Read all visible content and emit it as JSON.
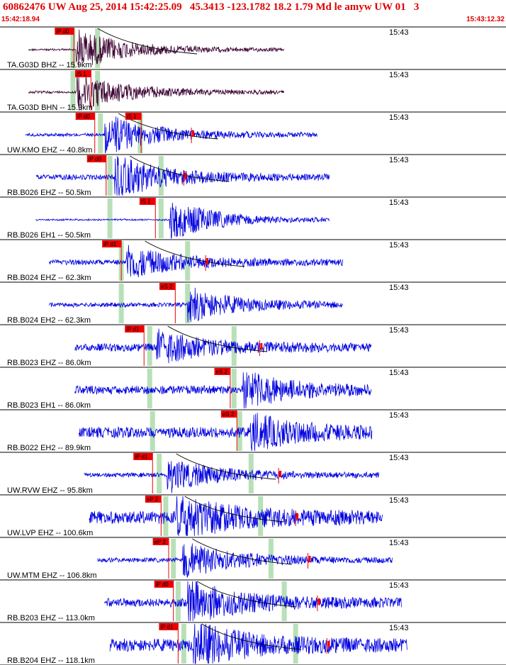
{
  "header": {
    "title": "60862476 UW Aug 25, 2014 15:42:25.09   45.3413 -123.1782 18.2 1.79 Md le amyw UW 01   3",
    "start_time": "15:42:18.94",
    "end_time": "15:43:12.32"
  },
  "colors": {
    "header_red": "#e00000",
    "trace_dark": "#3a0030",
    "trace_blue": "#0000e0",
    "pick_red": "#ee0000",
    "predict_green": "#b8e0b8",
    "divider": "#000000"
  },
  "chart_data": {
    "type": "line",
    "minute_label": "15:43",
    "panels": [
      {
        "station": "TA.G03D BHZ -- 15.9km",
        "color": "dark",
        "picks": [
          {
            "label": "iP d0",
            "t": 7.8
          }
        ],
        "green": [
          7.7,
          10.3
        ],
        "sig": [
          3.0,
          30.0
        ],
        "onset": 8.0,
        "amp": 0.95,
        "noise": 0.04,
        "amp_pick": null,
        "moveout": true
      },
      {
        "station": "TA.G03D BHN -- 15.9km",
        "color": "dark",
        "picks": [
          {
            "label": "iS 1",
            "t": 9.6
          }
        ],
        "green": [
          7.7,
          10.3
        ],
        "sig": [
          3.0,
          30.0
        ],
        "onset": 8.1,
        "amp": 0.9,
        "noise": 0.05,
        "amp_pick": null,
        "moveout": false
      },
      {
        "station": "UW.KMO EHZ -- 40.8km",
        "color": "blue",
        "picks": [
          {
            "label": "iP d0",
            "t": 10.0
          },
          {
            "label": "iS 1",
            "t": 14.9
          }
        ],
        "green": [
          10.6,
          14.8
        ],
        "sig": [
          2.7,
          33.5
        ],
        "onset": 11.0,
        "amp": 0.95,
        "noise": 0.07,
        "amp_pick": 20.2,
        "moveout": true
      },
      {
        "station": "RB.B026 EHZ -- 50.5km",
        "color": "blue",
        "picks": [
          {
            "label": "iP d0",
            "t": 11.2
          }
        ],
        "green": [
          11.6,
          17.0
        ],
        "sig": [
          3.8,
          34.8
        ],
        "onset": 12.1,
        "amp": 0.95,
        "noise": 0.12,
        "amp_pick": 19.4,
        "moveout": true
      },
      {
        "station": "RB.B026 EH1 -- 50.5km",
        "color": "blue",
        "picks": [
          {
            "label": "iS 1",
            "t": 16.4
          }
        ],
        "green": [
          11.6,
          17.0
        ],
        "sig": [
          3.8,
          34.8
        ],
        "onset": 17.9,
        "amp": 0.95,
        "noise": 0.03,
        "amp_pick": null,
        "moveout": false
      },
      {
        "station": "RB.B024 EHZ -- 62.3km",
        "color": "blue",
        "picks": [
          {
            "label": "iP d1",
            "t": 12.8
          }
        ],
        "green": [
          12.8,
          19.8
        ],
        "sig": [
          5.2,
          36.2
        ],
        "onset": 13.3,
        "amp": 0.75,
        "noise": 0.12,
        "amp_pick": 21.7,
        "moveout": true
      },
      {
        "station": "RB.B024 EH2 -- 62.3km",
        "color": "blue",
        "picks": [
          {
            "label": "eS 2",
            "t": 18.5
          }
        ],
        "green": [
          12.8,
          19.8
        ],
        "sig": [
          5.2,
          36.2
        ],
        "onset": 19.8,
        "amp": 0.75,
        "noise": 0.1,
        "amp_pick": null,
        "moveout": false
      },
      {
        "station": "RB.B023 EHZ -- 86.0km",
        "color": "blue",
        "picks": [
          {
            "label": "iP d1",
            "t": 15.2
          }
        ],
        "green": [
          15.8,
          24.7
        ],
        "sig": [
          7.9,
          39.2
        ],
        "onset": 16.5,
        "amp": 0.7,
        "noise": 0.18,
        "amp_pick": 27.4,
        "moveout": true
      },
      {
        "station": "RB.B023 EH1 -- 86.0km",
        "color": "blue",
        "picks": [
          {
            "label": "eS 2",
            "t": 24.3
          }
        ],
        "green": [
          15.8,
          24.7
        ],
        "sig": [
          7.9,
          39.2
        ],
        "onset": 25.6,
        "amp": 0.75,
        "noise": 0.2,
        "amp_pick": null,
        "moveout": false
      },
      {
        "station": "RB.B022 EH2 -- 89.9km",
        "color": "blue",
        "picks": [
          {
            "label": "eS 2",
            "t": 25.0
          }
        ],
        "green": [
          16.1,
          25.3
        ],
        "sig": [
          8.3,
          39.3
        ],
        "onset": 26.4,
        "amp": 0.75,
        "noise": 0.25,
        "amp_pick": null,
        "moveout": false
      },
      {
        "station": "UW.RVW EHZ -- 95.8km",
        "color": "blue",
        "picks": [
          {
            "label": "iP d1",
            "t": 16.1
          }
        ],
        "green": [
          16.8,
          26.5
        ],
        "sig": [
          8.9,
          40.0
        ],
        "onset": 17.6,
        "amp": 0.75,
        "noise": 0.1,
        "amp_pick": 29.4,
        "moveout": true
      },
      {
        "station": "UW.LVP EHZ -- 100.6km",
        "color": "blue",
        "picks": [
          {
            "label": "eP 2",
            "t": 17.0
          }
        ],
        "green": [
          17.5,
          27.5
        ],
        "sig": [
          9.4,
          40.4
        ],
        "onset": 18.6,
        "amp": 0.95,
        "noise": 0.3,
        "amp_pick": 31.2,
        "moveout": true
      },
      {
        "station": "UW.MTM EHZ -- 106.8km",
        "color": "blue",
        "picks": [
          {
            "label": "eP 2",
            "t": 17.8
          }
        ],
        "green": [
          18.3,
          28.6
        ],
        "sig": [
          10.3,
          41.4
        ],
        "onset": 19.3,
        "amp": 0.85,
        "noise": 0.1,
        "amp_pick": 32.5,
        "moveout": true
      },
      {
        "station": "RB.B203 EHZ -- 113.0km",
        "color": "blue",
        "picks": [
          {
            "label": "iP d0",
            "t": 18.3
          }
        ],
        "green": [
          18.8,
          30.0
        ],
        "sig": [
          11.0,
          42.4
        ],
        "onset": 19.8,
        "amp": 0.95,
        "noise": 0.2,
        "amp_pick": 33.5,
        "moveout": true
      },
      {
        "station": "RB.B204 EHZ -- 118.1km",
        "color": "blue",
        "picks": [
          {
            "label": "iP d1",
            "t": 18.8
          }
        ],
        "green": [
          19.4,
          31.2
        ],
        "sig": [
          11.6,
          43.0
        ],
        "onset": 20.4,
        "amp": 0.95,
        "noise": 0.3,
        "amp_pick": 34.5,
        "moveout": true
      }
    ]
  }
}
